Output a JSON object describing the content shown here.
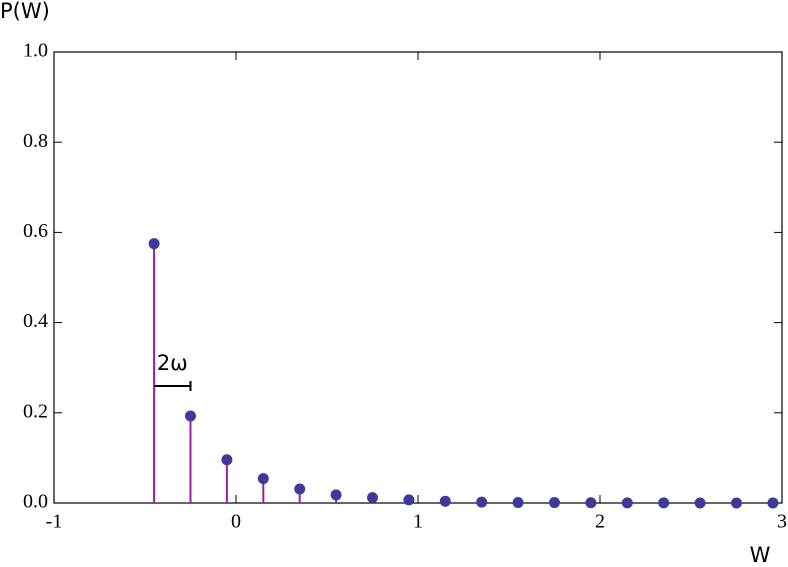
{
  "chart_data": {
    "type": "stem",
    "x_label": "W",
    "y_label": "P(W)",
    "annotation": "2ω",
    "x": [
      -0.45,
      -0.25,
      -0.05,
      0.15,
      0.35,
      0.55,
      0.75,
      0.95,
      1.15,
      1.35,
      1.55,
      1.75,
      1.95,
      2.15,
      2.35,
      2.55,
      2.75,
      2.95
    ],
    "values": [
      0.575,
      0.193,
      0.096,
      0.054,
      0.031,
      0.018,
      0.012,
      0.007,
      0.004,
      0.002,
      0.001,
      0.001,
      0.0005,
      0.0003,
      0.0002,
      0.0001,
      0.0001,
      0.0001
    ],
    "stem_color": "#9b1f9b",
    "marker_color": "#3e3a98",
    "xlim": [
      -1,
      3
    ],
    "xticks": [
      -1,
      0,
      1,
      2,
      3
    ],
    "ylim": [
      0,
      1
    ],
    "yticks": [
      {
        "value": 0,
        "label": "0.0"
      },
      {
        "value": 0.2,
        "label": "0.2"
      },
      {
        "value": 0.4,
        "label": "0.4"
      },
      {
        "value": 0.6,
        "label": "0.6"
      },
      {
        "value": 0.8,
        "label": "0.8"
      },
      {
        "value": 1,
        "label": "1.0"
      }
    ]
  }
}
